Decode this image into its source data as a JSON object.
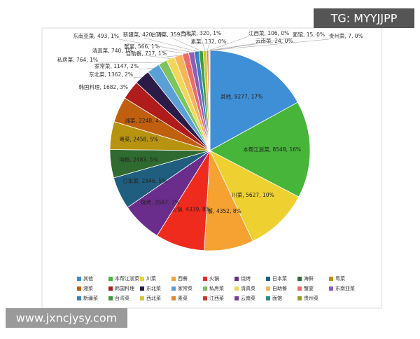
{
  "chart_data": {
    "type": "pie",
    "categories": [
      "其他",
      "本帮江浙菜",
      "川菜",
      "西餐",
      "火锅",
      "烧烤",
      "日本菜",
      "海鲜",
      "粤菜",
      "湘菜",
      "韩国料理",
      "东北菜",
      "家常菜",
      "私房菜",
      "清真菜",
      "自助餐",
      "蟹宴",
      "东南亚菜",
      "新疆菜",
      "台湾菜",
      "西北菜",
      "素菜",
      "江西菜",
      "云南菜",
      "面馆",
      "贵州菜"
    ],
    "values": [
      9277,
      8548,
      5627,
      4352,
      4339,
      3567,
      2846,
      2483,
      2458,
      2248,
      1682,
      1362,
      1147,
      764,
      740,
      717,
      566,
      493,
      420,
      359,
      320,
      132,
      106,
      24,
      15,
      7
    ],
    "value_labels": [
      "其他, 9277, 17%",
      "本帮江浙菜, 8548, 16%",
      "川菜, 5627, 10%",
      "西餐, 4352, 8%",
      "火锅, 4339, 8%",
      "烧烤, 3567, 7%",
      "日本菜, 2846, 5%",
      "海鲜, 2483, 5%",
      "粤菜, 2458, 5%",
      "湘菜, 2248, 4%",
      "韩国料理, 1682, 3%",
      "东北菜, 1362, 2%",
      "家常菜, 1147, 2%",
      "私房菜, 764, 1%",
      "清真菜, 740, 1%",
      "自助餐, 717, 1%",
      "蟹宴, 566, 1%",
      "东南亚菜, 493, 1%",
      "新疆菜, 420, 1%",
      "台湾菜, 359, 1%",
      "西北菜, 320, 1%",
      "素菜, 132, 0%",
      "江西菜, 106, 0%",
      "云南菜, 24, 0%",
      "面馆, 15, 0%",
      "贵州菜, 7, 0%"
    ],
    "colors": [
      "#3f8fd6",
      "#47b43a",
      "#efd031",
      "#f5a232",
      "#ef2b1d",
      "#6b2d8c",
      "#1f5e7e",
      "#2f6a30",
      "#b8930f",
      "#c0600e",
      "#b01c1c",
      "#2b1b48",
      "#5aa0d6",
      "#7cc45e",
      "#f0d75a",
      "#f6b45a",
      "#ef6a6a",
      "#8f5fb5",
      "#3a7fc2",
      "#3e9e3e",
      "#d7c23a",
      "#e08a2c",
      "#d23a2a",
      "#7a3a9a",
      "#2a8a8a",
      "#9a9a2a"
    ],
    "legend": "bottom"
  },
  "watermarks": [
    "TG: MYYJJPP",
    "www.jxncjysy.com"
  ]
}
